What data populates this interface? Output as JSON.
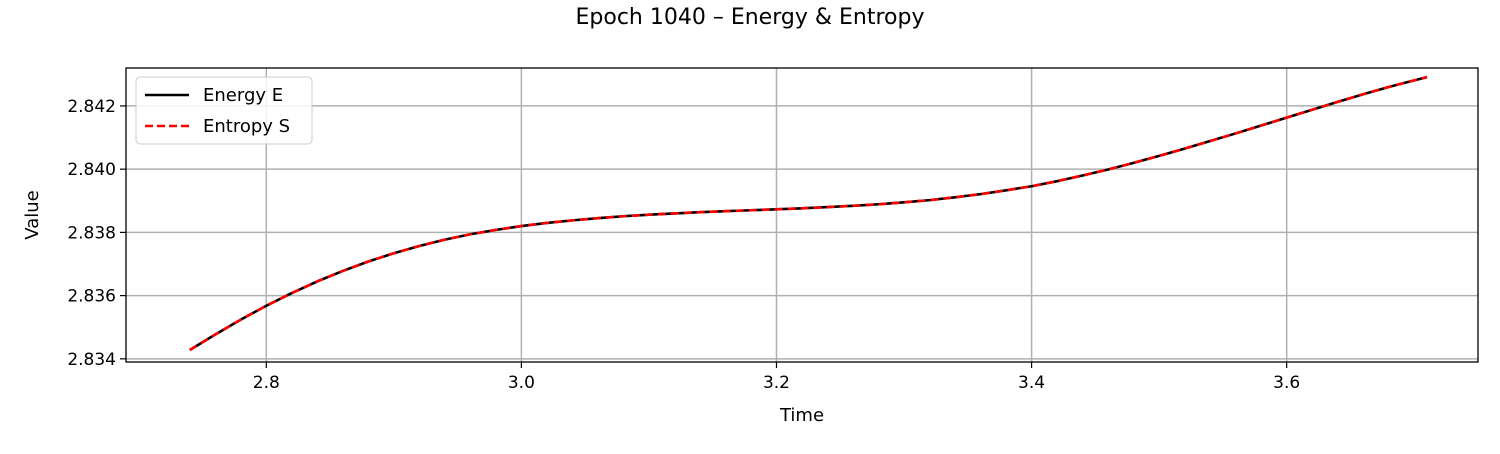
{
  "chart_data": {
    "type": "line",
    "title": "Epoch 1040 – Energy & Entropy",
    "xlabel": "Time",
    "ylabel": "Value",
    "xlim": [
      2.69,
      3.75
    ],
    "ylim": [
      2.8339,
      2.8432
    ],
    "xticks": [
      2.8,
      3.0,
      3.2,
      3.4,
      3.6
    ],
    "xtick_labels": [
      "2.8",
      "3.0",
      "3.2",
      "3.4",
      "3.6"
    ],
    "yticks": [
      2.834,
      2.836,
      2.838,
      2.84,
      2.842
    ],
    "ytick_labels": [
      "2.834",
      "2.836",
      "2.838",
      "2.840",
      "2.842"
    ],
    "grid": true,
    "legend_position": "upper-left",
    "x": [
      2.74,
      2.76,
      2.78,
      2.8,
      2.82,
      2.84,
      2.86,
      2.88,
      2.9,
      2.92,
      2.94,
      2.96,
      2.98,
      3.0,
      3.02,
      3.04,
      3.06,
      3.08,
      3.1,
      3.12,
      3.14,
      3.16,
      3.18,
      3.2,
      3.22,
      3.24,
      3.26,
      3.28,
      3.3,
      3.32,
      3.34,
      3.36,
      3.38,
      3.4,
      3.42,
      3.44,
      3.46,
      3.48,
      3.5,
      3.52,
      3.54,
      3.56,
      3.58,
      3.6,
      3.62,
      3.64,
      3.66,
      3.68,
      3.7,
      3.71
    ],
    "series": [
      {
        "name": "Energy E",
        "color": "#000000",
        "style": "solid",
        "values": [
          2.83428,
          2.83477,
          2.83524,
          2.83568,
          2.83608,
          2.83645,
          2.83678,
          2.83708,
          2.83734,
          2.83757,
          2.83777,
          2.83794,
          2.83808,
          2.8382,
          2.8383,
          2.83838,
          2.83845,
          2.83851,
          2.83856,
          2.8386,
          2.83864,
          2.83867,
          2.8387,
          2.83873,
          2.83876,
          2.8388,
          2.83884,
          2.83889,
          2.83895,
          2.83902,
          2.83911,
          2.83921,
          2.83933,
          2.83946,
          2.83962,
          2.8398,
          2.83999,
          2.8402,
          2.84042,
          2.84065,
          2.84089,
          2.84113,
          2.84138,
          2.84163,
          2.84188,
          2.84213,
          2.84237,
          2.8426,
          2.84281,
          2.84291
        ]
      },
      {
        "name": "Entropy S",
        "color": "#ff0000",
        "style": "dashed",
        "values": [
          2.83428,
          2.83477,
          2.83524,
          2.83568,
          2.83608,
          2.83645,
          2.83678,
          2.83708,
          2.83734,
          2.83757,
          2.83777,
          2.83794,
          2.83808,
          2.8382,
          2.8383,
          2.83838,
          2.83845,
          2.83851,
          2.83856,
          2.8386,
          2.83864,
          2.83867,
          2.8387,
          2.83873,
          2.83876,
          2.8388,
          2.83884,
          2.83889,
          2.83895,
          2.83902,
          2.83911,
          2.83921,
          2.83933,
          2.83946,
          2.83962,
          2.8398,
          2.83999,
          2.8402,
          2.84042,
          2.84065,
          2.84089,
          2.84113,
          2.84138,
          2.84163,
          2.84188,
          2.84213,
          2.84237,
          2.8426,
          2.84281,
          2.84291
        ]
      }
    ]
  }
}
